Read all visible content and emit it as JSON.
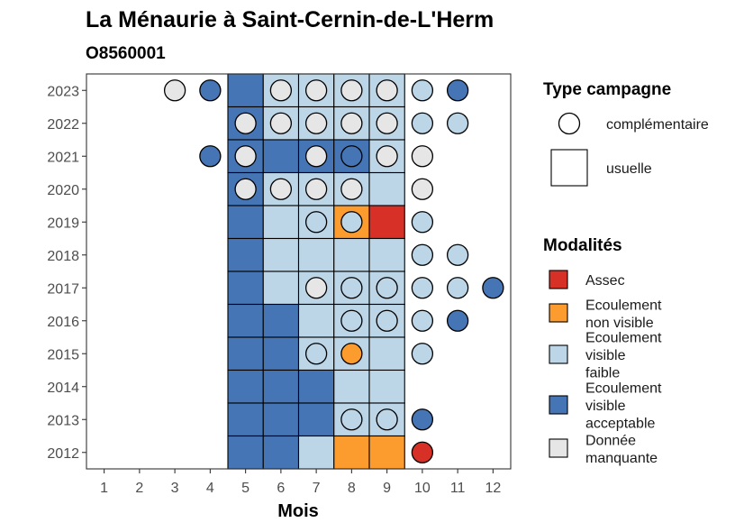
{
  "chart_data": {
    "type": "heatmap",
    "title": "La Ménaurie à Saint-Cernin-de-L'Herm",
    "subtitle": "O8560001",
    "xlabel": "Mois",
    "ylabel": "",
    "x_ticks": [
      "1",
      "2",
      "3",
      "4",
      "5",
      "6",
      "7",
      "8",
      "9",
      "10",
      "11",
      "12"
    ],
    "y_ticks": [
      "2023",
      "2022",
      "2021",
      "2020",
      "2019",
      "2018",
      "2017",
      "2016",
      "2015",
      "2014",
      "2013",
      "2012"
    ],
    "grid": false,
    "legend_position": "right",
    "legend_type": {
      "title": "Type campagne",
      "items": [
        {
          "key": "complementaire",
          "label": "complémentaire",
          "shape": "circle"
        },
        {
          "key": "usuelle",
          "label": "usuelle",
          "shape": "square"
        }
      ]
    },
    "legend_modalites": {
      "title": "Modalités",
      "items": [
        {
          "key": "assec",
          "lines": [
            "Assec"
          ],
          "color": "#d73027"
        },
        {
          "key": "ecoulement_non_visible",
          "lines": [
            "Ecoulement",
            "non visible"
          ],
          "color": "#fd9c2e"
        },
        {
          "key": "ecoulement_visible_faible",
          "lines": [
            "Ecoulement",
            "visible",
            "faible"
          ],
          "color": "#bcd6e8"
        },
        {
          "key": "ecoulement_visible_acceptable",
          "lines": [
            "Ecoulement",
            "visible",
            "acceptable"
          ],
          "color": "#4575b4"
        },
        {
          "key": "donnee_manquante",
          "lines": [
            "Donnée",
            "manquante"
          ],
          "color": "#e6e6e6"
        }
      ]
    },
    "usuelle": [
      {
        "year": 2023,
        "months": {
          "5": "ecoulement_visible_acceptable",
          "6": "ecoulement_visible_faible",
          "7": "ecoulement_visible_faible",
          "8": "ecoulement_visible_faible",
          "9": "ecoulement_visible_faible"
        }
      },
      {
        "year": 2022,
        "months": {
          "5": "ecoulement_visible_acceptable",
          "6": "ecoulement_visible_faible",
          "7": "ecoulement_visible_faible",
          "8": "ecoulement_visible_faible",
          "9": "ecoulement_visible_faible"
        }
      },
      {
        "year": 2021,
        "months": {
          "5": "ecoulement_visible_acceptable",
          "6": "ecoulement_visible_acceptable",
          "7": "ecoulement_visible_acceptable",
          "8": "ecoulement_visible_acceptable",
          "9": "ecoulement_visible_faible"
        }
      },
      {
        "year": 2020,
        "months": {
          "5": "ecoulement_visible_acceptable",
          "6": "ecoulement_visible_faible",
          "7": "ecoulement_visible_faible",
          "8": "ecoulement_visible_faible",
          "9": "ecoulement_visible_faible"
        }
      },
      {
        "year": 2019,
        "months": {
          "5": "ecoulement_visible_acceptable",
          "6": "ecoulement_visible_faible",
          "7": "ecoulement_visible_faible",
          "8": "ecoulement_non_visible",
          "9": "assec"
        }
      },
      {
        "year": 2018,
        "months": {
          "5": "ecoulement_visible_acceptable",
          "6": "ecoulement_visible_faible",
          "7": "ecoulement_visible_faible",
          "8": "ecoulement_visible_faible",
          "9": "ecoulement_visible_faible"
        }
      },
      {
        "year": 2017,
        "months": {
          "5": "ecoulement_visible_acceptable",
          "6": "ecoulement_visible_faible",
          "7": "ecoulement_visible_faible",
          "8": "ecoulement_visible_faible",
          "9": "ecoulement_visible_faible"
        }
      },
      {
        "year": 2016,
        "months": {
          "5": "ecoulement_visible_acceptable",
          "6": "ecoulement_visible_acceptable",
          "7": "ecoulement_visible_faible",
          "8": "ecoulement_visible_faible",
          "9": "ecoulement_visible_faible"
        }
      },
      {
        "year": 2015,
        "months": {
          "5": "ecoulement_visible_acceptable",
          "6": "ecoulement_visible_acceptable",
          "7": "ecoulement_visible_faible",
          "8": "ecoulement_visible_faible",
          "9": "ecoulement_visible_faible"
        }
      },
      {
        "year": 2014,
        "months": {
          "5": "ecoulement_visible_acceptable",
          "6": "ecoulement_visible_acceptable",
          "7": "ecoulement_visible_acceptable",
          "8": "ecoulement_visible_faible",
          "9": "ecoulement_visible_faible"
        }
      },
      {
        "year": 2013,
        "months": {
          "5": "ecoulement_visible_acceptable",
          "6": "ecoulement_visible_acceptable",
          "7": "ecoulement_visible_acceptable",
          "8": "ecoulement_visible_faible",
          "9": "ecoulement_visible_faible"
        }
      },
      {
        "year": 2012,
        "months": {
          "5": "ecoulement_visible_acceptable",
          "6": "ecoulement_visible_acceptable",
          "7": "ecoulement_visible_faible",
          "8": "ecoulement_non_visible",
          "9": "ecoulement_non_visible"
        }
      }
    ],
    "complementaire": [
      {
        "year": 2023,
        "months": {
          "3": "donnee_manquante",
          "4": "ecoulement_visible_acceptable",
          "6": "donnee_manquante",
          "7": "donnee_manquante",
          "8": "donnee_manquante",
          "9": "donnee_manquante",
          "10": "ecoulement_visible_faible",
          "11": "ecoulement_visible_acceptable"
        }
      },
      {
        "year": 2022,
        "months": {
          "5": "donnee_manquante",
          "6": "donnee_manquante",
          "7": "donnee_manquante",
          "8": "donnee_manquante",
          "9": "donnee_manquante",
          "10": "ecoulement_visible_faible",
          "11": "ecoulement_visible_faible"
        }
      },
      {
        "year": 2021,
        "months": {
          "4": "ecoulement_visible_acceptable",
          "5": "donnee_manquante",
          "7": "donnee_manquante",
          "8": "ecoulement_visible_acceptable",
          "9": "donnee_manquante",
          "10": "donnee_manquante"
        }
      },
      {
        "year": 2020,
        "months": {
          "5": "donnee_manquante",
          "6": "donnee_manquante",
          "7": "donnee_manquante",
          "8": "donnee_manquante",
          "10": "donnee_manquante"
        }
      },
      {
        "year": 2019,
        "months": {
          "7": "ecoulement_visible_faible",
          "8": "ecoulement_visible_faible",
          "10": "ecoulement_visible_faible"
        }
      },
      {
        "year": 2018,
        "months": {
          "10": "ecoulement_visible_faible",
          "11": "ecoulement_visible_faible"
        }
      },
      {
        "year": 2017,
        "months": {
          "7": "donnee_manquante",
          "8": "ecoulement_visible_faible",
          "9": "ecoulement_visible_faible",
          "10": "ecoulement_visible_faible",
          "11": "ecoulement_visible_faible",
          "12": "ecoulement_visible_acceptable"
        }
      },
      {
        "year": 2016,
        "months": {
          "8": "ecoulement_visible_faible",
          "9": "ecoulement_visible_faible",
          "10": "ecoulement_visible_faible",
          "11": "ecoulement_visible_acceptable"
        }
      },
      {
        "year": 2015,
        "months": {
          "7": "ecoulement_visible_faible",
          "8": "ecoulement_non_visible",
          "10": "ecoulement_visible_faible"
        }
      },
      {
        "year": 2014,
        "months": {}
      },
      {
        "year": 2013,
        "months": {
          "8": "ecoulement_visible_faible",
          "9": "ecoulement_visible_faible",
          "10": "ecoulement_visible_acceptable"
        }
      },
      {
        "year": 2012,
        "months": {
          "10": "assec"
        }
      }
    ]
  }
}
